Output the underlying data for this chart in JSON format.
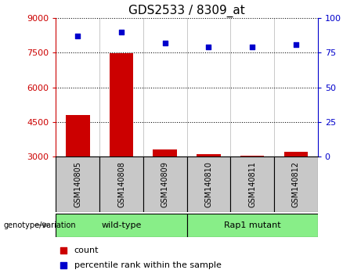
{
  "title": "GDS2533 / 8309_at",
  "samples": [
    "GSM140805",
    "GSM140808",
    "GSM140809",
    "GSM140810",
    "GSM140811",
    "GSM140812"
  ],
  "counts": [
    4800,
    7480,
    3320,
    3100,
    3020,
    3200
  ],
  "percentiles": [
    87,
    90,
    82,
    79,
    79,
    81
  ],
  "ylim_left": [
    3000,
    9000
  ],
  "ylim_right": [
    0,
    100
  ],
  "yticks_left": [
    3000,
    4500,
    6000,
    7500,
    9000
  ],
  "yticks_right": [
    0,
    25,
    50,
    75,
    100
  ],
  "bar_color": "#cc0000",
  "dot_color": "#0000cc",
  "group_label": "genotype/variation",
  "wt_label": "wild-type",
  "rap_label": "Rap1 mutant",
  "legend_count_label": "count",
  "legend_percentile_label": "percentile rank within the sample",
  "background_plot": "#ffffff",
  "sample_bg": "#c8c8c8",
  "group_bg": "#88ee88",
  "title_fontsize": 11,
  "tick_label_fontsize": 8,
  "left_tick_color": "#cc0000",
  "right_tick_color": "#0000cc",
  "grid_color": "#000000",
  "left_axis_color": "#cc0000",
  "right_axis_color": "#0000cc"
}
